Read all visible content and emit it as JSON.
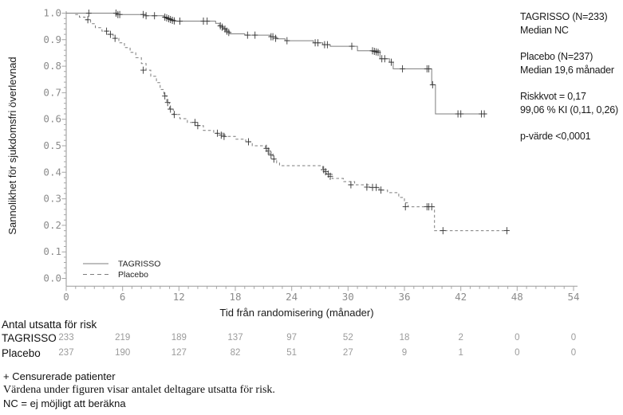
{
  "colors": {
    "line": "#7d7d7d",
    "censor": "#333333",
    "axis": "#a6a6a6",
    "tick_label": "#8c8c8c",
    "risk_number": "#9b9b9b",
    "text": "#1a1a1a"
  },
  "chart_data": {
    "type": "line",
    "subtype": "kaplan-meier-step",
    "title": "",
    "xlabel": "Tid från randomisering (månader)",
    "ylabel": "Sannolikhet för sjukdomsfri överlevnad",
    "xlim": [
      0,
      54
    ],
    "ylim": [
      0.0,
      1.0
    ],
    "xticks": [
      0,
      6,
      12,
      18,
      24,
      30,
      36,
      42,
      48,
      54
    ],
    "x_minor_step": 1,
    "ytick_labels": [
      "0.0",
      "0.1",
      "0.2",
      "0.3",
      "0.4",
      "0.5",
      "0.6",
      "0.7",
      "0.8",
      "0.9",
      "1.0"
    ],
    "yticks": [
      0.0,
      0.1,
      0.2,
      0.3,
      0.4,
      0.5,
      0.6,
      0.7,
      0.8,
      0.9,
      1.0
    ],
    "y_minor_step": 0.02,
    "grid": false,
    "legend": {
      "position": "bottom-left",
      "entries": [
        {
          "label": "TAGRISSO",
          "style": "solid"
        },
        {
          "label": "Placebo",
          "style": "dashed"
        }
      ]
    },
    "series": [
      {
        "name": "TAGRISSO",
        "style": "solid",
        "steps": [
          [
            0,
            1.0
          ],
          [
            5.4,
            0.995
          ],
          [
            8.5,
            0.99
          ],
          [
            10.4,
            0.985
          ],
          [
            10.8,
            0.98
          ],
          [
            11.2,
            0.974
          ],
          [
            11.6,
            0.97
          ],
          [
            15.9,
            0.962
          ],
          [
            16.3,
            0.952
          ],
          [
            16.7,
            0.942
          ],
          [
            17.0,
            0.932
          ],
          [
            17.4,
            0.922
          ],
          [
            19.0,
            0.917
          ],
          [
            21.7,
            0.911
          ],
          [
            22.4,
            0.903
          ],
          [
            23.3,
            0.896
          ],
          [
            26.3,
            0.888
          ],
          [
            27.3,
            0.881
          ],
          [
            28.1,
            0.875
          ],
          [
            31.0,
            0.858
          ],
          [
            33.4,
            0.828
          ],
          [
            34.4,
            0.815
          ],
          [
            34.8,
            0.79
          ],
          [
            38.9,
            0.73
          ],
          [
            39.3,
            0.62
          ],
          [
            44.7,
            0.62
          ]
        ],
        "censors": [
          [
            2.4,
            1.0
          ],
          [
            5.3,
            1.0
          ],
          [
            5.5,
            0.995
          ],
          [
            5.7,
            0.995
          ],
          [
            8.2,
            0.995
          ],
          [
            8.5,
            0.99
          ],
          [
            9.4,
            0.99
          ],
          [
            10.5,
            0.985
          ],
          [
            10.7,
            0.982
          ],
          [
            10.9,
            0.979
          ],
          [
            11.1,
            0.976
          ],
          [
            11.3,
            0.973
          ],
          [
            11.5,
            0.971
          ],
          [
            12.1,
            0.97
          ],
          [
            14.6,
            0.97
          ],
          [
            15.0,
            0.97
          ],
          [
            16.4,
            0.952
          ],
          [
            16.6,
            0.947
          ],
          [
            16.9,
            0.94
          ],
          [
            17.1,
            0.932
          ],
          [
            17.3,
            0.927
          ],
          [
            19.3,
            0.917
          ],
          [
            20.1,
            0.917
          ],
          [
            21.8,
            0.911
          ],
          [
            22.0,
            0.911
          ],
          [
            22.3,
            0.905
          ],
          [
            23.5,
            0.896
          ],
          [
            26.5,
            0.888
          ],
          [
            26.8,
            0.888
          ],
          [
            27.5,
            0.881
          ],
          [
            27.8,
            0.881
          ],
          [
            30.4,
            0.875
          ],
          [
            32.6,
            0.858
          ],
          [
            32.8,
            0.856
          ],
          [
            33.0,
            0.854
          ],
          [
            33.2,
            0.852
          ],
          [
            33.6,
            0.828
          ],
          [
            33.9,
            0.828
          ],
          [
            34.6,
            0.815
          ],
          [
            35.8,
            0.79
          ],
          [
            38.4,
            0.79
          ],
          [
            38.6,
            0.79
          ],
          [
            39.0,
            0.73
          ],
          [
            41.7,
            0.62
          ],
          [
            42.0,
            0.62
          ],
          [
            44.2,
            0.62
          ],
          [
            44.5,
            0.62
          ]
        ]
      },
      {
        "name": "Placebo",
        "style": "dashed",
        "steps": [
          [
            0,
            1.0
          ],
          [
            0.9,
            0.995
          ],
          [
            1.4,
            0.985
          ],
          [
            2.0,
            0.975
          ],
          [
            2.6,
            0.96
          ],
          [
            3.1,
            0.945
          ],
          [
            3.8,
            0.932
          ],
          [
            4.4,
            0.92
          ],
          [
            5.0,
            0.905
          ],
          [
            5.6,
            0.888
          ],
          [
            6.2,
            0.87
          ],
          [
            6.8,
            0.852
          ],
          [
            7.4,
            0.832
          ],
          [
            8.0,
            0.81
          ],
          [
            8.5,
            0.785
          ],
          [
            9.0,
            0.762
          ],
          [
            9.6,
            0.738
          ],
          [
            10.0,
            0.712
          ],
          [
            10.4,
            0.688
          ],
          [
            10.7,
            0.663
          ],
          [
            11.0,
            0.638
          ],
          [
            11.4,
            0.618
          ],
          [
            12.1,
            0.602
          ],
          [
            12.9,
            0.588
          ],
          [
            13.7,
            0.576
          ],
          [
            14.6,
            0.558
          ],
          [
            15.7,
            0.547
          ],
          [
            16.9,
            0.535
          ],
          [
            18.0,
            0.525
          ],
          [
            19.1,
            0.515
          ],
          [
            19.8,
            0.5
          ],
          [
            21.2,
            0.49
          ],
          [
            21.6,
            0.47
          ],
          [
            22.0,
            0.45
          ],
          [
            22.4,
            0.435
          ],
          [
            22.7,
            0.425
          ],
          [
            27.3,
            0.41
          ],
          [
            27.7,
            0.393
          ],
          [
            28.3,
            0.377
          ],
          [
            29.5,
            0.365
          ],
          [
            30.7,
            0.353
          ],
          [
            32.3,
            0.343
          ],
          [
            33.3,
            0.333
          ],
          [
            34.2,
            0.323
          ],
          [
            35.4,
            0.305
          ],
          [
            36.0,
            0.285
          ],
          [
            36.4,
            0.27
          ],
          [
            39.2,
            0.18
          ],
          [
            46.9,
            0.18
          ]
        ],
        "censors": [
          [
            2.3,
            0.975
          ],
          [
            4.3,
            0.932
          ],
          [
            4.7,
            0.92
          ],
          [
            5.2,
            0.905
          ],
          [
            8.2,
            0.785
          ],
          [
            10.5,
            0.688
          ],
          [
            10.8,
            0.663
          ],
          [
            11.1,
            0.638
          ],
          [
            11.5,
            0.618
          ],
          [
            13.7,
            0.588
          ],
          [
            14.0,
            0.576
          ],
          [
            16.1,
            0.547
          ],
          [
            16.5,
            0.54
          ],
          [
            16.8,
            0.535
          ],
          [
            19.4,
            0.515
          ],
          [
            21.3,
            0.49
          ],
          [
            21.5,
            0.48
          ],
          [
            21.8,
            0.465
          ],
          [
            22.1,
            0.45
          ],
          [
            27.4,
            0.41
          ],
          [
            27.6,
            0.402
          ],
          [
            27.9,
            0.393
          ],
          [
            28.1,
            0.385
          ],
          [
            30.3,
            0.353
          ],
          [
            32.0,
            0.344
          ],
          [
            32.6,
            0.343
          ],
          [
            33.0,
            0.343
          ],
          [
            33.5,
            0.333
          ],
          [
            36.1,
            0.27
          ],
          [
            38.4,
            0.27
          ],
          [
            38.6,
            0.27
          ],
          [
            38.9,
            0.27
          ],
          [
            40.1,
            0.18
          ],
          [
            46.9,
            0.18
          ]
        ]
      }
    ],
    "annotations": [
      [
        "TAGRISSO (N=233)",
        "Median NC"
      ],
      [
        "Placebo (N=237)",
        "Median 19,6 månader"
      ],
      [
        "Riskkvot = 0,17",
        "99,06 % KI (0,11, 0,26)"
      ],
      [
        "p-värde <0,0001"
      ]
    ]
  },
  "risk_table": {
    "title": "Antal utsatta för risk",
    "times": [
      0,
      6,
      12,
      18,
      24,
      30,
      36,
      42,
      48,
      54
    ],
    "rows": [
      {
        "label": "TAGRISSO",
        "counts": [
          "233",
          "219",
          "189",
          "137",
          "97",
          "52",
          "18",
          "2",
          "0",
          "0"
        ]
      },
      {
        "label": "Placebo",
        "counts": [
          "237",
          "190",
          "127",
          "82",
          "51",
          "27",
          "9",
          "1",
          "0",
          "0"
        ]
      }
    ]
  },
  "footnotes": [
    "+ Censurerade patienter",
    "Värdena under figuren visar antalet deltagare utsatta för risk.",
    "NC = ej möjligt att beräkna"
  ]
}
